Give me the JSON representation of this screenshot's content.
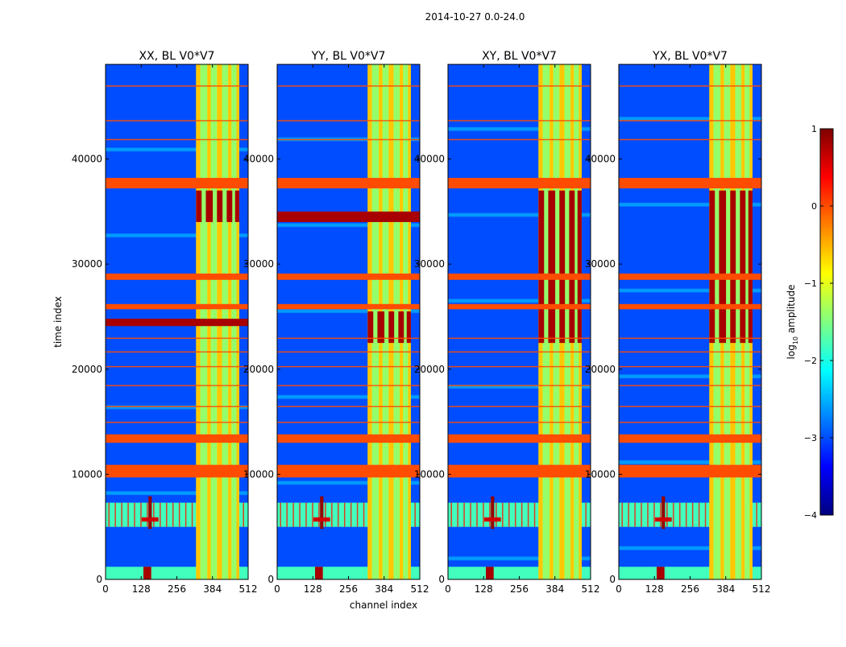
{
  "suptitle": "2014-10-27 0.0-24.0",
  "shared_xlabel": "channel index",
  "shared_ylabel": "time index",
  "colorbar": {
    "label_main": "log",
    "label_sub": "10",
    "label_tail": " amplitude",
    "ticks": [
      1,
      0,
      -1,
      -2,
      -3,
      -4
    ],
    "tick_labels": [
      "1",
      "0",
      "−1",
      "−2",
      "−3",
      "−4"
    ],
    "vmin": -4,
    "vmax": 1,
    "colormap": "jet",
    "colors": [
      "#00007f",
      "#0000ff",
      "#0080ff",
      "#00ffff",
      "#80ff80",
      "#ffff00",
      "#ff8000",
      "#ff0000",
      "#7f0000"
    ]
  },
  "chart_data": [
    {
      "type": "heatmap",
      "title": "XX, BL V0*V7",
      "xlabel": "channel index",
      "ylabel": "time index",
      "xlim": [
        0,
        512
      ],
      "ylim": [
        0,
        49000
      ],
      "xticks": [
        0,
        128,
        256,
        384,
        512
      ],
      "xtick_labels": [
        "0",
        "128",
        "256",
        "384",
        "512"
      ],
      "yticks": [
        0,
        10000,
        20000,
        30000,
        40000
      ],
      "ytick_labels": [
        "0",
        "10000",
        "20000",
        "30000",
        "40000"
      ],
      "background_level": -3,
      "rfi_column_range": [
        325,
        480
      ],
      "rfi_column_level": -1,
      "horizontal_bands": [
        {
          "time": [
            9700,
            10900
          ],
          "level": 0
        },
        {
          "time": [
            13000,
            13800
          ],
          "level": 0
        },
        {
          "time": [
            24100,
            24800
          ],
          "level": 0.8
        },
        {
          "time": [
            25700,
            26200
          ],
          "level": 0
        },
        {
          "time": [
            28500,
            29100
          ],
          "level": 0
        },
        {
          "time": [
            37200,
            38200
          ],
          "level": 0
        }
      ],
      "bright_block": {
        "time": [
          34000,
          37000
        ],
        "channel": [
          325,
          480
        ],
        "level": 0.8
      },
      "burst_region": {
        "time": [
          5000,
          7300
        ],
        "peak_channel": 160
      },
      "low_burst": {
        "time": [
          0,
          1200
        ],
        "peak_channel": 150
      }
    },
    {
      "type": "heatmap",
      "title": "YY, BL V0*V7",
      "xlabel": "channel index",
      "ylabel": "time index",
      "xlim": [
        0,
        512
      ],
      "ylim": [
        0,
        49000
      ],
      "xticks": [
        0,
        128,
        256,
        384,
        512
      ],
      "xtick_labels": [
        "0",
        "128",
        "256",
        "384",
        "512"
      ],
      "yticks": [
        0,
        10000,
        20000,
        30000,
        40000
      ],
      "ytick_labels": [
        "0",
        "10000",
        "20000",
        "30000",
        "40000"
      ],
      "background_level": -3,
      "rfi_column_range": [
        325,
        480
      ],
      "rfi_column_level": -1,
      "horizontal_bands": [
        {
          "time": [
            9700,
            10900
          ],
          "level": 0
        },
        {
          "time": [
            13000,
            13800
          ],
          "level": 0
        },
        {
          "time": [
            25700,
            26200
          ],
          "level": 0
        },
        {
          "time": [
            28500,
            29100
          ],
          "level": 0
        },
        {
          "time": [
            34000,
            35000
          ],
          "level": 0.8
        },
        {
          "time": [
            37200,
            38200
          ],
          "level": 0
        }
      ],
      "bright_block": {
        "time": [
          22500,
          25500
        ],
        "channel": [
          325,
          480
        ],
        "level": 0.8
      },
      "burst_region": {
        "time": [
          5000,
          7300
        ],
        "peak_channel": 160
      },
      "low_burst": {
        "time": [
          0,
          1200
        ],
        "peak_channel": 150
      }
    },
    {
      "type": "heatmap",
      "title": "XY, BL V0*V7",
      "xlabel": "channel index",
      "ylabel": "time index",
      "xlim": [
        0,
        512
      ],
      "ylim": [
        0,
        49000
      ],
      "xticks": [
        0,
        128,
        256,
        384,
        512
      ],
      "xtick_labels": [
        "0",
        "128",
        "256",
        "384",
        "512"
      ],
      "yticks": [
        0,
        10000,
        20000,
        30000,
        40000
      ],
      "ytick_labels": [
        "0",
        "10000",
        "20000",
        "30000",
        "40000"
      ],
      "background_level": -3,
      "rfi_column_range": [
        325,
        480
      ],
      "rfi_column_level": -1,
      "horizontal_bands": [
        {
          "time": [
            9700,
            10900
          ],
          "level": 0
        },
        {
          "time": [
            13000,
            13800
          ],
          "level": 0
        },
        {
          "time": [
            25700,
            26200
          ],
          "level": 0
        },
        {
          "time": [
            28500,
            29100
          ],
          "level": 0
        },
        {
          "time": [
            37200,
            38200
          ],
          "level": 0
        }
      ],
      "bright_block": {
        "time": [
          22500,
          37000
        ],
        "channel": [
          325,
          480
        ],
        "level": 0.8
      },
      "burst_region": {
        "time": [
          5000,
          7300
        ],
        "peak_channel": 160
      },
      "low_burst": {
        "time": [
          0,
          1200
        ],
        "peak_channel": 150
      }
    },
    {
      "type": "heatmap",
      "title": "YX, BL V0*V7",
      "xlabel": "channel index",
      "ylabel": "time index",
      "xlim": [
        0,
        512
      ],
      "ylim": [
        0,
        49000
      ],
      "xticks": [
        0,
        128,
        256,
        384,
        512
      ],
      "xtick_labels": [
        "0",
        "128",
        "256",
        "384",
        "512"
      ],
      "yticks": [
        0,
        10000,
        20000,
        30000,
        40000
      ],
      "ytick_labels": [
        "0",
        "10000",
        "20000",
        "30000",
        "40000"
      ],
      "background_level": -3,
      "rfi_column_range": [
        325,
        480
      ],
      "rfi_column_level": -1,
      "horizontal_bands": [
        {
          "time": [
            9700,
            10900
          ],
          "level": 0
        },
        {
          "time": [
            13000,
            13800
          ],
          "level": 0
        },
        {
          "time": [
            25700,
            26200
          ],
          "level": 0
        },
        {
          "time": [
            28500,
            29100
          ],
          "level": 0
        },
        {
          "time": [
            37200,
            38200
          ],
          "level": 0
        }
      ],
      "bright_block": {
        "time": [
          22500,
          37000
        ],
        "channel": [
          325,
          480
        ],
        "level": 0.8
      },
      "burst_region": {
        "time": [
          5000,
          7300
        ],
        "peak_channel": 160
      },
      "low_burst": {
        "time": [
          0,
          1200
        ],
        "peak_channel": 150
      }
    }
  ]
}
